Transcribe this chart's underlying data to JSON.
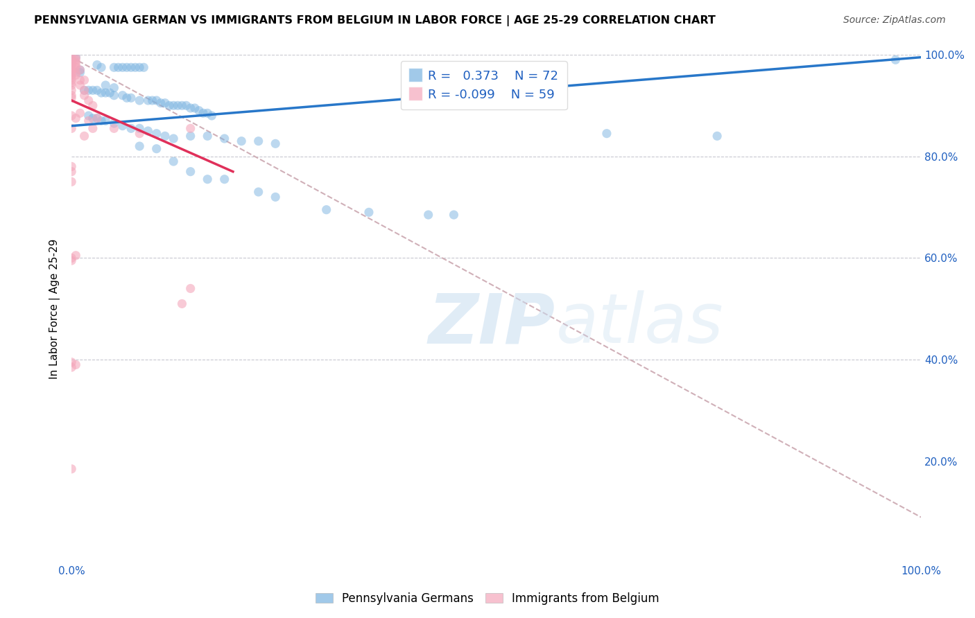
{
  "title": "PENNSYLVANIA GERMAN VS IMMIGRANTS FROM BELGIUM IN LABOR FORCE | AGE 25-29 CORRELATION CHART",
  "source": "Source: ZipAtlas.com",
  "ylabel": "In Labor Force | Age 25-29",
  "xlim": [
    0.0,
    1.0
  ],
  "ylim": [
    0.0,
    1.0
  ],
  "grid_color": "#c8c8d0",
  "legend_R_blue": "0.373",
  "legend_N_blue": "72",
  "legend_R_pink": "-0.099",
  "legend_N_pink": "59",
  "blue_color": "#7ab3e0",
  "pink_color": "#f4a7bb",
  "trend_blue_color": "#2877c9",
  "trend_pink_color": "#e0305a",
  "trend_dashed_color": "#d0b0b8",
  "watermark_zip": "ZIP",
  "watermark_atlas": "atlas",
  "legend_label_blue": "Pennsylvania Germans",
  "legend_label_pink": "Immigrants from Belgium",
  "blue_scatter": [
    [
      0.005,
      0.995
    ],
    [
      0.01,
      0.97
    ],
    [
      0.01,
      0.965
    ],
    [
      0.03,
      0.98
    ],
    [
      0.035,
      0.975
    ],
    [
      0.05,
      0.975
    ],
    [
      0.055,
      0.975
    ],
    [
      0.06,
      0.975
    ],
    [
      0.065,
      0.975
    ],
    [
      0.07,
      0.975
    ],
    [
      0.075,
      0.975
    ],
    [
      0.08,
      0.975
    ],
    [
      0.085,
      0.975
    ],
    [
      0.04,
      0.94
    ],
    [
      0.05,
      0.935
    ],
    [
      0.015,
      0.93
    ],
    [
      0.02,
      0.93
    ],
    [
      0.025,
      0.93
    ],
    [
      0.03,
      0.93
    ],
    [
      0.035,
      0.925
    ],
    [
      0.04,
      0.925
    ],
    [
      0.045,
      0.925
    ],
    [
      0.05,
      0.92
    ],
    [
      0.06,
      0.92
    ],
    [
      0.065,
      0.915
    ],
    [
      0.07,
      0.915
    ],
    [
      0.08,
      0.91
    ],
    [
      0.09,
      0.91
    ],
    [
      0.095,
      0.91
    ],
    [
      0.1,
      0.91
    ],
    [
      0.105,
      0.905
    ],
    [
      0.11,
      0.905
    ],
    [
      0.115,
      0.9
    ],
    [
      0.12,
      0.9
    ],
    [
      0.125,
      0.9
    ],
    [
      0.13,
      0.9
    ],
    [
      0.135,
      0.9
    ],
    [
      0.14,
      0.895
    ],
    [
      0.145,
      0.895
    ],
    [
      0.15,
      0.89
    ],
    [
      0.155,
      0.885
    ],
    [
      0.16,
      0.885
    ],
    [
      0.165,
      0.88
    ],
    [
      0.02,
      0.88
    ],
    [
      0.025,
      0.875
    ],
    [
      0.03,
      0.875
    ],
    [
      0.035,
      0.87
    ],
    [
      0.04,
      0.87
    ],
    [
      0.05,
      0.865
    ],
    [
      0.06,
      0.86
    ],
    [
      0.07,
      0.855
    ],
    [
      0.08,
      0.855
    ],
    [
      0.09,
      0.85
    ],
    [
      0.1,
      0.845
    ],
    [
      0.11,
      0.84
    ],
    [
      0.12,
      0.835
    ],
    [
      0.14,
      0.84
    ],
    [
      0.16,
      0.84
    ],
    [
      0.18,
      0.835
    ],
    [
      0.2,
      0.83
    ],
    [
      0.22,
      0.83
    ],
    [
      0.24,
      0.825
    ],
    [
      0.08,
      0.82
    ],
    [
      0.1,
      0.815
    ],
    [
      0.12,
      0.79
    ],
    [
      0.14,
      0.77
    ],
    [
      0.16,
      0.755
    ],
    [
      0.18,
      0.755
    ],
    [
      0.22,
      0.73
    ],
    [
      0.24,
      0.72
    ],
    [
      0.3,
      0.695
    ],
    [
      0.35,
      0.69
    ],
    [
      0.42,
      0.685
    ],
    [
      0.45,
      0.685
    ],
    [
      0.63,
      0.845
    ],
    [
      0.76,
      0.84
    ],
    [
      0.97,
      0.99
    ]
  ],
  "pink_scatter": [
    [
      0.0,
      0.995
    ],
    [
      0.0,
      0.99
    ],
    [
      0.0,
      0.985
    ],
    [
      0.0,
      0.98
    ],
    [
      0.0,
      0.975
    ],
    [
      0.0,
      0.97
    ],
    [
      0.0,
      0.965
    ],
    [
      0.0,
      0.96
    ],
    [
      0.0,
      0.955
    ],
    [
      0.0,
      0.95
    ],
    [
      0.0,
      0.945
    ],
    [
      0.0,
      0.94
    ],
    [
      0.0,
      0.93
    ],
    [
      0.0,
      0.92
    ],
    [
      0.0,
      0.915
    ],
    [
      0.005,
      0.995
    ],
    [
      0.005,
      0.99
    ],
    [
      0.005,
      0.985
    ],
    [
      0.005,
      0.98
    ],
    [
      0.005,
      0.975
    ],
    [
      0.005,
      0.965
    ],
    [
      0.005,
      0.96
    ],
    [
      0.01,
      0.97
    ],
    [
      0.01,
      0.95
    ],
    [
      0.01,
      0.94
    ],
    [
      0.015,
      0.95
    ],
    [
      0.015,
      0.93
    ],
    [
      0.015,
      0.92
    ],
    [
      0.02,
      0.91
    ],
    [
      0.025,
      0.9
    ],
    [
      0.0,
      0.88
    ],
    [
      0.0,
      0.855
    ],
    [
      0.0,
      0.78
    ],
    [
      0.0,
      0.77
    ],
    [
      0.0,
      0.75
    ],
    [
      0.005,
      0.875
    ],
    [
      0.01,
      0.885
    ],
    [
      0.015,
      0.84
    ],
    [
      0.02,
      0.87
    ],
    [
      0.025,
      0.855
    ],
    [
      0.03,
      0.875
    ],
    [
      0.05,
      0.855
    ],
    [
      0.08,
      0.845
    ],
    [
      0.14,
      0.855
    ],
    [
      0.0,
      0.6
    ],
    [
      0.0,
      0.595
    ],
    [
      0.005,
      0.605
    ],
    [
      0.0,
      0.395
    ],
    [
      0.0,
      0.385
    ],
    [
      0.005,
      0.39
    ],
    [
      0.0,
      0.185
    ],
    [
      0.14,
      0.54
    ],
    [
      0.13,
      0.51
    ]
  ],
  "blue_trend": [
    0.0,
    0.86,
    1.0,
    0.995
  ],
  "pink_trend": [
    0.0,
    0.91,
    0.19,
    0.77
  ],
  "dashed_trend": [
    0.0,
    0.995,
    1.0,
    0.09
  ]
}
